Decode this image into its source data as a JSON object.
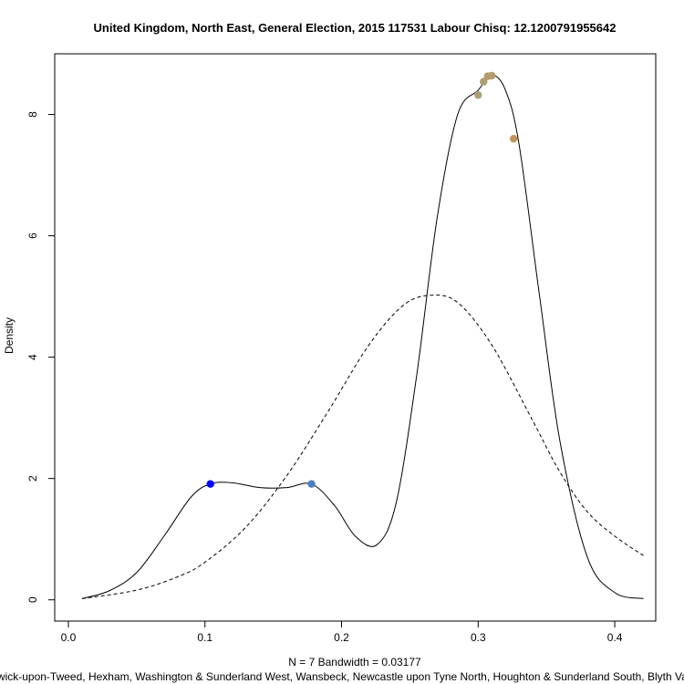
{
  "chart_data": {
    "type": "line",
    "title": "United Kingdom, North East, General Election, 2015 117531 Labour Chisq: 12.1200791955642",
    "xlabel": "N = 7   Bandwidth = 0.03177",
    "sublabel": "Berwick-upon-Tweed, Hexham, Washington & Sunderland West, Wansbeck, Newcastle upon Tyne North, Houghton & Sunderland South, Blyth Valley",
    "ylabel": "Density",
    "xlim": [
      -0.01,
      0.43
    ],
    "ylim": [
      -0.35,
      9.0
    ],
    "x_ticks": [
      0.0,
      0.1,
      0.2,
      0.3,
      0.4
    ],
    "x_tick_labels": [
      "0.0",
      "0.1",
      "0.2",
      "0.3",
      "0.4"
    ],
    "y_ticks": [
      0,
      2,
      4,
      6,
      8
    ],
    "y_tick_labels": [
      "0",
      "2",
      "4",
      "6",
      "8"
    ],
    "grid": false,
    "series": [
      {
        "style": "solid",
        "x": [
          0.01,
          0.03,
          0.05,
          0.07,
          0.09,
          0.104,
          0.12,
          0.14,
          0.16,
          0.178,
          0.195,
          0.21,
          0.226,
          0.24,
          0.255,
          0.27,
          0.285,
          0.3,
          0.31,
          0.32,
          0.33,
          0.345,
          0.36,
          0.38,
          0.4,
          0.421
        ],
        "y": [
          0.02,
          0.15,
          0.45,
          1.05,
          1.7,
          1.91,
          1.93,
          1.85,
          1.85,
          1.91,
          1.55,
          1.05,
          0.91,
          1.6,
          3.7,
          6.3,
          8.0,
          8.4,
          8.65,
          8.4,
          7.5,
          5.0,
          2.6,
          0.7,
          0.12,
          0.02
        ]
      },
      {
        "style": "dashed",
        "x": [
          0.01,
          0.05,
          0.08,
          0.1,
          0.13,
          0.16,
          0.19,
          0.22,
          0.245,
          0.265,
          0.285,
          0.31,
          0.34,
          0.36,
          0.38,
          0.4,
          0.421
        ],
        "y": [
          0.02,
          0.16,
          0.38,
          0.62,
          1.2,
          2.05,
          3.1,
          4.2,
          4.85,
          5.02,
          4.9,
          4.2,
          2.95,
          2.1,
          1.45,
          1.05,
          0.73
        ]
      }
    ],
    "points": [
      {
        "x": 0.104,
        "y": 1.91,
        "color": "#0000ff"
      },
      {
        "x": 0.178,
        "y": 1.91,
        "color": "#4a7fc1"
      },
      {
        "x": 0.3,
        "y": 8.32,
        "color": "#a9a07a"
      },
      {
        "x": 0.304,
        "y": 8.54,
        "color": "#ae9d70"
      },
      {
        "x": 0.307,
        "y": 8.63,
        "color": "#b09c6d"
      },
      {
        "x": 0.31,
        "y": 8.64,
        "color": "#b09c6d"
      },
      {
        "x": 0.326,
        "y": 7.6,
        "color": "#c0955a"
      }
    ]
  }
}
